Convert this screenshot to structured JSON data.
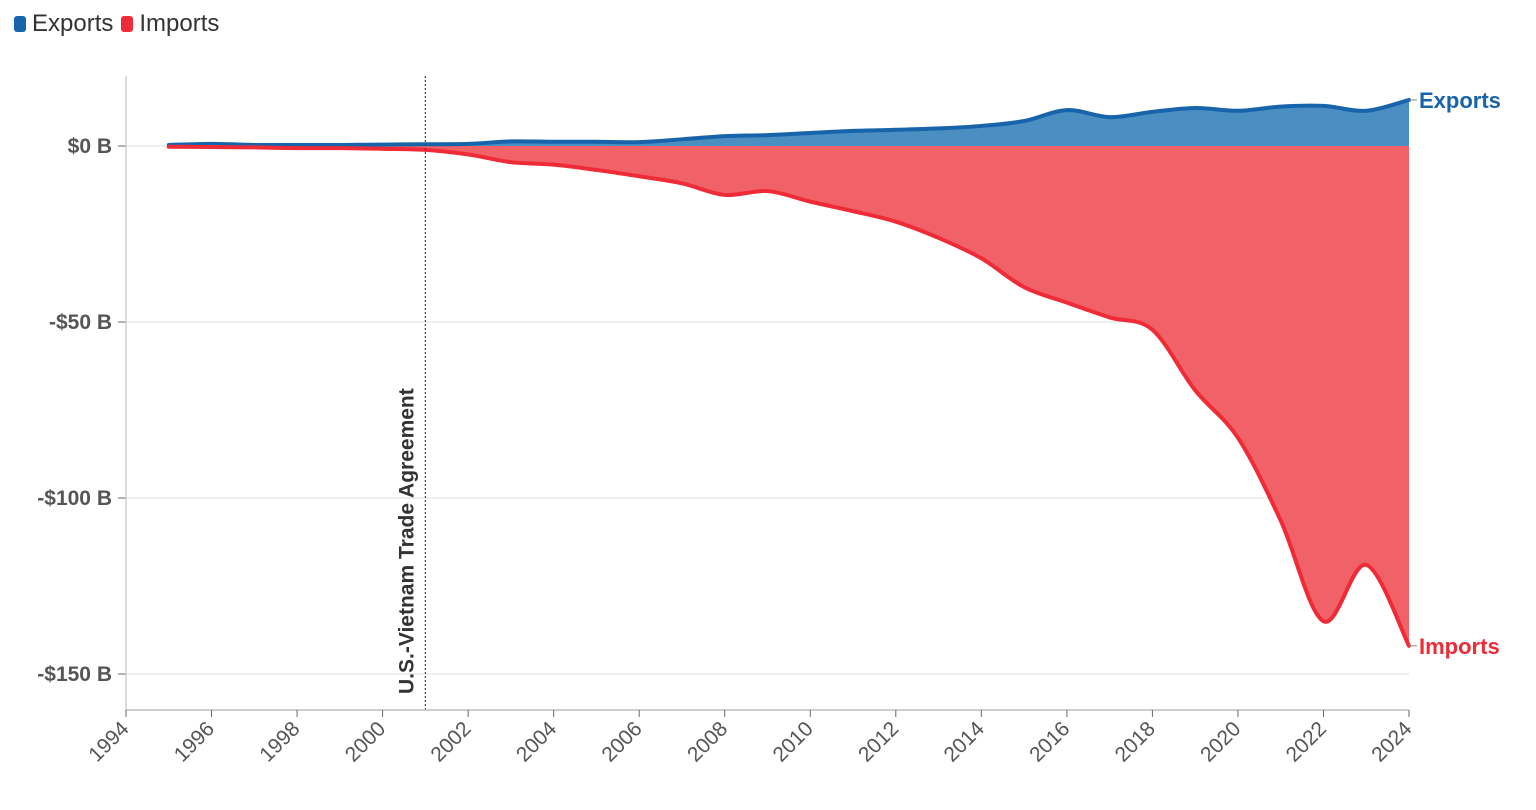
{
  "legend": {
    "exports_label": "Exports",
    "imports_label": "Imports"
  },
  "colors": {
    "exports_line": "#1764ab",
    "exports_fill": "#4a8ec2",
    "imports_line": "#ee2b36",
    "imports_fill": "#f06268",
    "grid": "#e8e8e8",
    "axis": "#666666"
  },
  "chart_data": {
    "type": "area",
    "title": "",
    "xlabel": "",
    "ylabel": "",
    "xlim": [
      1994,
      2024
    ],
    "ylim": [
      -160,
      20
    ],
    "x_ticks": [
      1994,
      1996,
      1998,
      2000,
      2002,
      2004,
      2006,
      2008,
      2010,
      2012,
      2014,
      2016,
      2018,
      2020,
      2022,
      2024
    ],
    "y_ticks": [
      {
        "value": 0,
        "label": "$0 B"
      },
      {
        "value": -50,
        "label": "-$50 B"
      },
      {
        "value": -100,
        "label": "-$100 B"
      },
      {
        "value": -150,
        "label": "-$150 B"
      }
    ],
    "x": [
      1995,
      1996,
      1997,
      1998,
      1999,
      2000,
      2001,
      2002,
      2003,
      2004,
      2005,
      2006,
      2007,
      2008,
      2009,
      2010,
      2011,
      2012,
      2013,
      2014,
      2015,
      2016,
      2017,
      2018,
      2019,
      2020,
      2021,
      2022,
      2023,
      2024
    ],
    "series": [
      {
        "name": "Exports",
        "values": [
          0.3,
          0.6,
          0.3,
          0.3,
          0.3,
          0.4,
          0.5,
          0.6,
          1.3,
          1.2,
          1.2,
          1.1,
          1.9,
          2.8,
          3.1,
          3.7,
          4.3,
          4.6,
          5.0,
          5.7,
          7.1,
          10.2,
          8.2,
          9.7,
          10.8,
          10.0,
          11.2,
          11.4,
          10.0,
          13.1
        ]
      },
      {
        "name": "Imports",
        "values": [
          -0.2,
          -0.3,
          -0.4,
          -0.6,
          -0.6,
          -0.8,
          -1.1,
          -2.4,
          -4.6,
          -5.3,
          -6.8,
          -8.6,
          -10.6,
          -13.9,
          -12.8,
          -15.8,
          -18.5,
          -21.5,
          -26.1,
          -31.9,
          -40.1,
          -44.5,
          -48.7,
          -52.2,
          -69.4,
          -82.9,
          -106.4,
          -135.0,
          -119.0,
          -142.0
        ]
      }
    ],
    "annotations": [
      {
        "x": 2001,
        "label": "U.S.-Vietnam Trade Agreement",
        "style": "dotted-vertical-line"
      }
    ],
    "end_labels": [
      "Exports",
      "Imports"
    ],
    "grid": true
  }
}
